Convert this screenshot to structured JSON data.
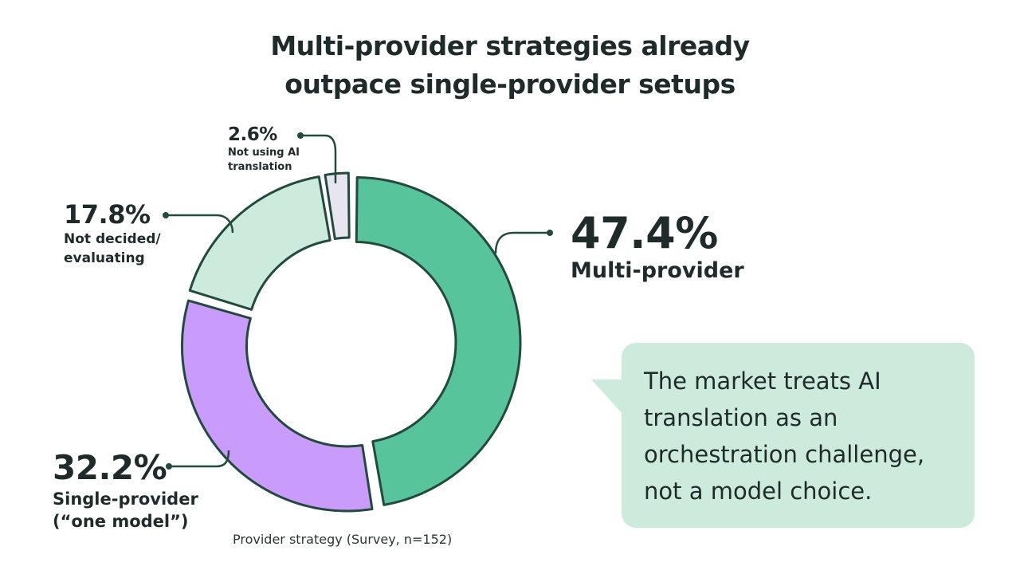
{
  "chart_data": {
    "type": "pie",
    "variant": "donut",
    "title": "Multi-provider strategies already outpace single-provider setups",
    "title_lines": [
      "Multi-provider strategies already",
      "outpace single-provider setups"
    ],
    "caption": "Provider strategy (Survey, n=152)",
    "unit": "%",
    "slices": [
      {
        "label": "Multi-provider",
        "label_lines": [
          "Multi-provider"
        ],
        "value": 47.4,
        "display": "47.4%",
        "color": "#57c49b"
      },
      {
        "label": "Single-provider (“one model”)",
        "label_lines": [
          "Single-provider",
          "(“one model”)"
        ],
        "value": 32.2,
        "display": "32.2%",
        "color": "#c99cfb"
      },
      {
        "label": "Not decided/ evaluating",
        "label_lines": [
          "Not decided/",
          "evaluating"
        ],
        "value": 17.8,
        "display": "17.8%",
        "color": "#cdebdc"
      },
      {
        "label": "Not using AI translation",
        "label_lines": [
          "Not using AI",
          "translation"
        ],
        "value": 2.6,
        "display": "2.6%",
        "color": "#e7e6f0"
      }
    ],
    "stroke_color": "#234a3e"
  },
  "callout": {
    "lines": [
      "The market treats AI",
      "translation as an",
      "orchestration challenge,",
      "not a model choice."
    ],
    "background": "#cdebdc"
  }
}
